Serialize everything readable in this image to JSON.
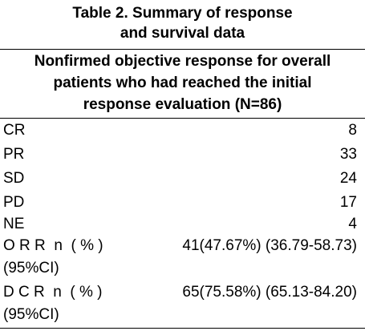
{
  "caption": {
    "line1": "Table 2. Summary of response",
    "line2": "and survival data"
  },
  "subheader": {
    "line1": "Nonfirmed objective response for overall",
    "line2": "patients who had reached the initial",
    "line3": "response evaluation (N=86)"
  },
  "rows": [
    {
      "label": "CR",
      "value": "8"
    },
    {
      "label": "PR",
      "value": "33"
    },
    {
      "label": "SD",
      "value": "24"
    },
    {
      "label": "PD",
      "value": "17"
    },
    {
      "label": "NE",
      "value": "4"
    }
  ],
  "orr": {
    "label_line1": "O R R  n  ( % )",
    "label_line2": "(95%CI)",
    "value": "41(47.67%) (36.79-58.73)"
  },
  "dcr": {
    "label_line1": "D C R  n  ( % )",
    "label_line2": "(95%CI)",
    "value": "65(75.58%) (65.13-84.20)"
  }
}
